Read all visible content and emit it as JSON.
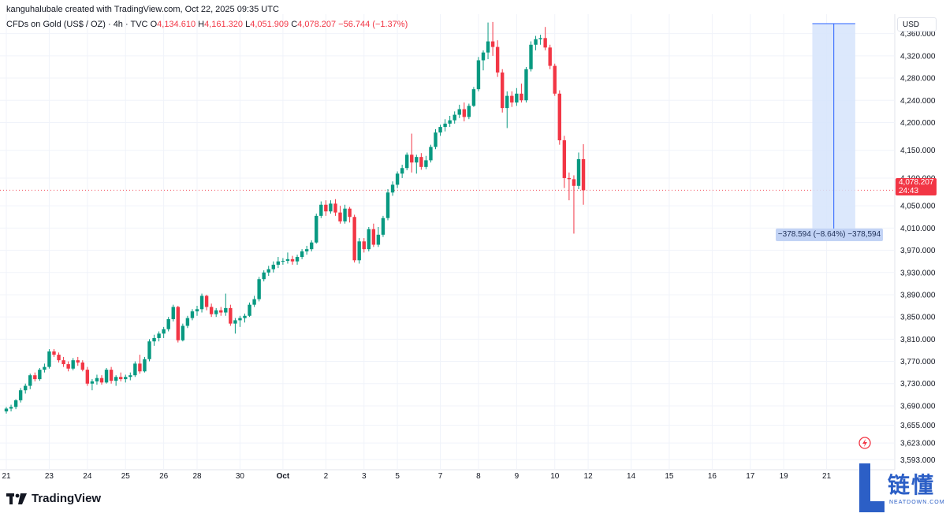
{
  "header": {
    "credit": "kanguhalubale created with TradingView.com, Oct 22, 2025 09:35 UTC",
    "symbol": "CFDs on Gold (US$ / OZ) · 4h · TVC",
    "o_label": "O",
    "o_value": "4,134.610",
    "h_label": "H",
    "h_value": "4,161.320",
    "l_label": "L",
    "l_value": "4,051.909",
    "c_label": "C",
    "c_value": "4,078.207",
    "change": "−56.744 (−1.37%)"
  },
  "currency": "USD",
  "last_price": {
    "value": "4,078.207",
    "countdown": "24:43"
  },
  "measure": {
    "label": "−378.594 (−8.64%) −378,594"
  },
  "branding": {
    "logo_text": "TradingView",
    "watermark_cn": "链懂",
    "watermark_en": "NEATDOWN.COM"
  },
  "colors": {
    "up": "#089981",
    "down": "#f23645",
    "measure_fill": "#d6e4fb",
    "measure_line": "#2962ff"
  },
  "chart_data": {
    "type": "candlestick",
    "title": "CFDs on Gold (US$ / OZ)",
    "ylabel": "USD",
    "ylim": [
      3575,
      4395
    ],
    "y_ticks": [
      {
        "v": 4360,
        "label": "4,360.000"
      },
      {
        "v": 4320,
        "label": "4,320.000"
      },
      {
        "v": 4280,
        "label": "4,280.000"
      },
      {
        "v": 4240,
        "label": "4,240.000"
      },
      {
        "v": 4200,
        "label": "4,200.000"
      },
      {
        "v": 4150,
        "label": "4,150.000"
      },
      {
        "v": 4100,
        "label": "4,100.000"
      },
      {
        "v": 4050,
        "label": "4,050.000"
      },
      {
        "v": 4010,
        "label": "4,010.000"
      },
      {
        "v": 3970,
        "label": "3,970.000"
      },
      {
        "v": 3930,
        "label": "3,930.000"
      },
      {
        "v": 3890,
        "label": "3,890.000"
      },
      {
        "v": 3850,
        "label": "3,850.000"
      },
      {
        "v": 3810,
        "label": "3,810.000"
      },
      {
        "v": 3770,
        "label": "3,770.000"
      },
      {
        "v": 3730,
        "label": "3,730.000"
      },
      {
        "v": 3690,
        "label": "3,690.000"
      },
      {
        "v": 3655,
        "label": "3,655.000"
      },
      {
        "v": 3623,
        "label": "3,623.000"
      },
      {
        "v": 3593,
        "label": "3,593.000"
      }
    ],
    "x_ticks": [
      {
        "i": 0,
        "label": "21"
      },
      {
        "i": 9,
        "label": "23"
      },
      {
        "i": 17,
        "label": "24"
      },
      {
        "i": 25,
        "label": "25"
      },
      {
        "i": 33,
        "label": "26"
      },
      {
        "i": 40,
        "label": "28"
      },
      {
        "i": 49,
        "label": "30"
      },
      {
        "i": 58,
        "label": "Oct",
        "bold": true
      },
      {
        "i": 67,
        "label": "2"
      },
      {
        "i": 75,
        "label": "3"
      },
      {
        "i": 82,
        "label": "5"
      },
      {
        "i": 91,
        "label": "7"
      },
      {
        "i": 99,
        "label": "8"
      },
      {
        "i": 107,
        "label": "9"
      },
      {
        "i": 115,
        "label": "10"
      },
      {
        "i": 122,
        "label": "12"
      },
      {
        "i": 131,
        "label": "14"
      },
      {
        "i": 139,
        "label": "15"
      },
      {
        "i": 148,
        "label": "16"
      },
      {
        "i": 156,
        "label": "17"
      },
      {
        "i": 163,
        "label": "19"
      },
      {
        "i": 172,
        "label": "21"
      }
    ],
    "last_close": 4078.207,
    "measure": {
      "high": 4378,
      "low": 4000,
      "from_index": 169,
      "to_index": 178,
      "change": -378.594,
      "pct": -8.64
    },
    "candles": [
      [
        3680,
        3688,
        3676,
        3685
      ],
      [
        3685,
        3692,
        3680,
        3688
      ],
      [
        3688,
        3702,
        3684,
        3700
      ],
      [
        3700,
        3722,
        3696,
        3718
      ],
      [
        3718,
        3730,
        3712,
        3726
      ],
      [
        3726,
        3748,
        3720,
        3745
      ],
      [
        3745,
        3750,
        3734,
        3738
      ],
      [
        3738,
        3758,
        3735,
        3755
      ],
      [
        3755,
        3766,
        3750,
        3760
      ],
      [
        3760,
        3792,
        3757,
        3788
      ],
      [
        3788,
        3792,
        3778,
        3782
      ],
      [
        3782,
        3786,
        3768,
        3772
      ],
      [
        3772,
        3778,
        3760,
        3765
      ],
      [
        3765,
        3770,
        3752,
        3757
      ],
      [
        3757,
        3776,
        3754,
        3772
      ],
      [
        3772,
        3778,
        3762,
        3768
      ],
      [
        3768,
        3772,
        3752,
        3755
      ],
      [
        3755,
        3760,
        3726,
        3730
      ],
      [
        3730,
        3738,
        3718,
        3734
      ],
      [
        3734,
        3746,
        3728,
        3740
      ],
      [
        3740,
        3745,
        3728,
        3732
      ],
      [
        3732,
        3758,
        3730,
        3755
      ],
      [
        3755,
        3760,
        3730,
        3735
      ],
      [
        3735,
        3745,
        3726,
        3742
      ],
      [
        3742,
        3750,
        3734,
        3738
      ],
      [
        3738,
        3746,
        3732,
        3742
      ],
      [
        3742,
        3750,
        3736,
        3745
      ],
      [
        3745,
        3770,
        3742,
        3766
      ],
      [
        3766,
        3782,
        3748,
        3752
      ],
      [
        3752,
        3778,
        3750,
        3774
      ],
      [
        3774,
        3810,
        3770,
        3806
      ],
      [
        3806,
        3818,
        3798,
        3812
      ],
      [
        3812,
        3824,
        3806,
        3820
      ],
      [
        3820,
        3832,
        3812,
        3828
      ],
      [
        3828,
        3850,
        3824,
        3846
      ],
      [
        3846,
        3872,
        3842,
        3868
      ],
      [
        3868,
        3870,
        3804,
        3808
      ],
      [
        3808,
        3838,
        3806,
        3834
      ],
      [
        3834,
        3852,
        3830,
        3848
      ],
      [
        3848,
        3864,
        3844,
        3860
      ],
      [
        3860,
        3870,
        3852,
        3864
      ],
      [
        3864,
        3892,
        3858,
        3888
      ],
      [
        3888,
        3890,
        3862,
        3868
      ],
      [
        3868,
        3874,
        3850,
        3855
      ],
      [
        3855,
        3866,
        3850,
        3862
      ],
      [
        3862,
        3868,
        3852,
        3858
      ],
      [
        3858,
        3892,
        3852,
        3866
      ],
      [
        3866,
        3872,
        3834,
        3838
      ],
      [
        3838,
        3848,
        3820,
        3844
      ],
      [
        3844,
        3852,
        3832,
        3848
      ],
      [
        3848,
        3856,
        3840,
        3852
      ],
      [
        3852,
        3876,
        3850,
        3872
      ],
      [
        3872,
        3888,
        3868,
        3882
      ],
      [
        3882,
        3922,
        3878,
        3918
      ],
      [
        3918,
        3934,
        3914,
        3930
      ],
      [
        3930,
        3942,
        3924,
        3936
      ],
      [
        3936,
        3950,
        3930,
        3944
      ],
      [
        3944,
        3958,
        3938,
        3950
      ],
      [
        3950,
        3956,
        3944,
        3951
      ],
      [
        3951,
        3966,
        3946,
        3954
      ],
      [
        3954,
        3960,
        3944,
        3950
      ],
      [
        3950,
        3962,
        3944,
        3958
      ],
      [
        3958,
        3972,
        3954,
        3968
      ],
      [
        3968,
        3978,
        3962,
        3972
      ],
      [
        3972,
        3988,
        3968,
        3984
      ],
      [
        3984,
        4036,
        3982,
        4032
      ],
      [
        4032,
        4058,
        4028,
        4052
      ],
      [
        4052,
        4060,
        4032,
        4040
      ],
      [
        4040,
        4060,
        4036,
        4054
      ],
      [
        4054,
        4062,
        4032,
        4038
      ],
      [
        4038,
        4050,
        4018,
        4022
      ],
      [
        4022,
        4052,
        4018,
        4045
      ],
      [
        4045,
        4048,
        4020,
        4030
      ],
      [
        4030,
        4034,
        3948,
        3952
      ],
      [
        3952,
        3992,
        3946,
        3986
      ],
      [
        3986,
        3992,
        3966,
        3972
      ],
      [
        3972,
        4012,
        3968,
        4008
      ],
      [
        4008,
        4018,
        3976,
        3980
      ],
      [
        3980,
        4012,
        3976,
        3998
      ],
      [
        3998,
        4032,
        3994,
        4028
      ],
      [
        4028,
        4080,
        4024,
        4074
      ],
      [
        4074,
        4094,
        4068,
        4088
      ],
      [
        4088,
        4112,
        4082,
        4108
      ],
      [
        4108,
        4124,
        4100,
        4118
      ],
      [
        4118,
        4146,
        4114,
        4142
      ],
      [
        4142,
        4180,
        4110,
        4128
      ],
      [
        4128,
        4142,
        4108,
        4138
      ],
      [
        4138,
        4145,
        4115,
        4120
      ],
      [
        4120,
        4140,
        4116,
        4132
      ],
      [
        4132,
        4160,
        4128,
        4156
      ],
      [
        4156,
        4188,
        4152,
        4182
      ],
      [
        4182,
        4196,
        4176,
        4192
      ],
      [
        4192,
        4206,
        4184,
        4198
      ],
      [
        4198,
        4212,
        4192,
        4204
      ],
      [
        4204,
        4220,
        4198,
        4214
      ],
      [
        4214,
        4232,
        4208,
        4224
      ],
      [
        4224,
        4236,
        4202,
        4210
      ],
      [
        4210,
        4234,
        4206,
        4230
      ],
      [
        4230,
        4264,
        4228,
        4260
      ],
      [
        4260,
        4318,
        4256,
        4312
      ],
      [
        4312,
        4330,
        4294,
        4326
      ],
      [
        4326,
        4380,
        4314,
        4346
      ],
      [
        4346,
        4381,
        4320,
        4336
      ],
      [
        4336,
        4348,
        4282,
        4290
      ],
      [
        4290,
        4296,
        4218,
        4226
      ],
      [
        4226,
        4256,
        4190,
        4248
      ],
      [
        4248,
        4256,
        4228,
        4236
      ],
      [
        4236,
        4262,
        4230,
        4252
      ],
      [
        4252,
        4270,
        4236,
        4240
      ],
      [
        4240,
        4300,
        4236,
        4296
      ],
      [
        4296,
        4346,
        4292,
        4340
      ],
      [
        4340,
        4356,
        4330,
        4350
      ],
      [
        4350,
        4358,
        4340,
        4352
      ],
      [
        4352,
        4372,
        4330,
        4335
      ],
      [
        4335,
        4340,
        4296,
        4302
      ],
      [
        4302,
        4306,
        4248,
        4252
      ],
      [
        4252,
        4258,
        4160,
        4168
      ],
      [
        4168,
        4176,
        4082,
        4100
      ],
      [
        4100,
        4110,
        4060,
        4098
      ],
      [
        4098,
        4105,
        4000,
        4086
      ],
      [
        4086,
        4146,
        4080,
        4134
      ],
      [
        4134,
        4161,
        4052,
        4078
      ]
    ]
  }
}
